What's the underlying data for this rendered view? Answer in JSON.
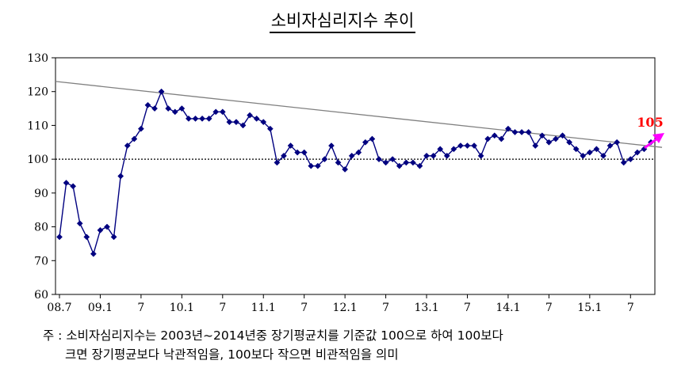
{
  "title": "소비자심리지수 추이",
  "notes": {
    "line1": "주 : 소비자심리지수는 2003년~2014년중 장기평균치를 기준값 100으로 하여 100보다",
    "line2": "크면 장기평균보다 낙관적임을, 100보다 작으면 비관적임을 의미"
  },
  "chart_data": {
    "type": "line",
    "title": "소비자심리지수 추이",
    "ylim": [
      60,
      130
    ],
    "yticks": [
      60,
      70,
      80,
      90,
      100,
      110,
      120,
      130
    ],
    "xtick_labels": [
      {
        "label": "08.7",
        "index": 0
      },
      {
        "label": "09.1",
        "index": 6
      },
      {
        "label": "7",
        "index": 12
      },
      {
        "label": "10.1",
        "index": 18
      },
      {
        "label": "7",
        "index": 24
      },
      {
        "label": "11.1",
        "index": 30
      },
      {
        "label": "7",
        "index": 36
      },
      {
        "label": "12.1",
        "index": 42
      },
      {
        "label": "7",
        "index": 48
      },
      {
        "label": "13.1",
        "index": 54
      },
      {
        "label": "7",
        "index": 60
      },
      {
        "label": "14.1",
        "index": 66
      },
      {
        "label": "7",
        "index": 72
      },
      {
        "label": "15.1",
        "index": 78
      },
      {
        "label": "7",
        "index": 84
      }
    ],
    "series": [
      {
        "color": "#000080",
        "values": [
          77,
          93,
          92,
          81,
          77,
          72,
          79,
          80,
          77,
          95,
          104,
          106,
          109,
          116,
          115,
          120,
          115,
          114,
          115,
          112,
          112,
          112,
          112,
          114,
          114,
          111,
          111,
          110,
          113,
          112,
          111,
          109,
          99,
          101,
          104,
          102,
          102,
          98,
          98,
          100,
          104,
          99,
          97,
          101,
          102,
          105,
          106,
          100,
          99,
          100,
          98,
          99,
          99,
          98,
          101,
          101,
          103,
          101,
          103,
          104,
          104,
          104,
          101,
          106,
          107,
          106,
          109,
          108,
          108,
          108,
          104,
          107,
          105,
          106,
          107,
          105,
          103,
          101,
          102,
          103,
          101,
          104,
          105,
          99,
          100,
          102,
          103,
          105
        ]
      }
    ],
    "reference_line": {
      "value": 100,
      "style": "dotted"
    },
    "trend_line": {
      "start": 123,
      "end": 103.5,
      "color": "#808080"
    },
    "annotation": {
      "text": "105",
      "color": "#ff0000",
      "arrow_color": "#ff00ff"
    },
    "grid": false
  }
}
